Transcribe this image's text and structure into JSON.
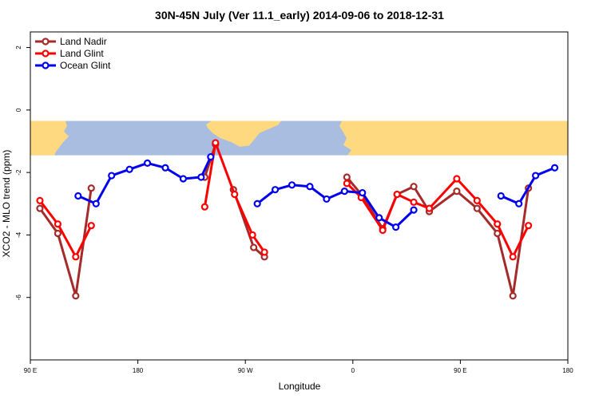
{
  "chart_data": {
    "type": "line",
    "title": "30N-45N July (Ver 11.1_early)   2014-09-06 to 2018-12-31",
    "xlabel": "Longitude",
    "ylabel": "XCO2 - MLO trend (ppm)",
    "xlim": [
      90,
      540
    ],
    "ylim": [
      -8,
      2.5
    ],
    "x_ticks": [
      {
        "value": 90,
        "label": "90 E"
      },
      {
        "value": 180,
        "label": "180"
      },
      {
        "value": 270,
        "label": "90 W"
      },
      {
        "value": 360,
        "label": "0"
      },
      {
        "value": 450,
        "label": "90 E"
      },
      {
        "value": 540,
        "label": "180"
      }
    ],
    "y_ticks": [
      {
        "value": 2,
        "label": "2"
      },
      {
        "value": 0,
        "label": "0"
      },
      {
        "value": -2,
        "label": "-2"
      },
      {
        "value": -4,
        "label": "-4"
      },
      {
        "value": -6,
        "label": "-6"
      }
    ],
    "legend_position": "top-left",
    "grid": false,
    "map_band": {
      "y_top": -0.35,
      "y_bottom": -1.45,
      "ocean_color": "#a9bde0",
      "land_color": "#ffd980"
    },
    "series": [
      {
        "name": "Land Nadir",
        "color": "#a52a2a",
        "segments": [
          [
            [
              98,
              -3.15
            ],
            [
              113,
              -3.95
            ],
            [
              128,
              -5.95
            ],
            [
              141,
              -2.5
            ]
          ],
          [
            [
              236,
              -2.15
            ],
            [
              245,
              -1.1
            ]
          ],
          [
            [
              260,
              -2.55
            ],
            [
              277,
              -4.4
            ],
            [
              286,
              -4.7
            ]
          ],
          [
            [
              355,
              -2.15
            ],
            [
              367,
              -2.7
            ],
            [
              385,
              -3.8
            ],
            [
              397,
              -2.7
            ],
            [
              411,
              -2.45
            ],
            [
              424,
              -3.25
            ],
            [
              447,
              -2.6
            ],
            [
              464,
              -3.15
            ],
            [
              481,
              -3.95
            ],
            [
              494,
              -5.95
            ],
            [
              507,
              -2.5
            ]
          ]
        ]
      },
      {
        "name": "Land Glint",
        "color": "#ff0000",
        "segments": [
          [
            [
              98,
              -2.9
            ],
            [
              113,
              -3.65
            ],
            [
              128,
              -4.7
            ],
            [
              141,
              -3.7
            ]
          ],
          [
            [
              236,
              -3.1
            ],
            [
              245,
              -1.05
            ],
            [
              261,
              -2.7
            ],
            [
              276,
              -4.0
            ],
            [
              286,
              -4.55
            ]
          ],
          [
            [
              355,
              -2.35
            ],
            [
              367,
              -2.8
            ],
            [
              385,
              -3.85
            ],
            [
              397,
              -2.7
            ],
            [
              411,
              -2.95
            ],
            [
              424,
              -3.15
            ],
            [
              447,
              -2.2
            ],
            [
              464,
              -2.9
            ],
            [
              481,
              -3.65
            ],
            [
              494,
              -4.7
            ],
            [
              507,
              -3.7
            ]
          ]
        ]
      },
      {
        "name": "Ocean Glint",
        "color": "#0000ee",
        "segments": [
          [
            [
              130,
              -2.75
            ],
            [
              145,
              -3.0
            ],
            [
              158,
              -2.1
            ],
            [
              173,
              -1.9
            ],
            [
              188,
              -1.7
            ],
            [
              203,
              -1.85
            ],
            [
              218,
              -2.2
            ],
            [
              233,
              -2.15
            ],
            [
              241,
              -1.5
            ]
          ],
          [
            [
              280,
              -3.0
            ],
            [
              295,
              -2.55
            ],
            [
              309,
              -2.4
            ],
            [
              324,
              -2.45
            ],
            [
              338,
              -2.85
            ],
            [
              353,
              -2.6
            ],
            [
              368,
              -2.65
            ],
            [
              382,
              -3.45
            ],
            [
              396,
              -3.75
            ],
            [
              411,
              -3.2
            ]
          ],
          [
            [
              484,
              -2.75
            ],
            [
              499,
              -3.0
            ],
            [
              513,
              -2.1
            ],
            [
              529,
              -1.85
            ]
          ]
        ]
      }
    ]
  }
}
